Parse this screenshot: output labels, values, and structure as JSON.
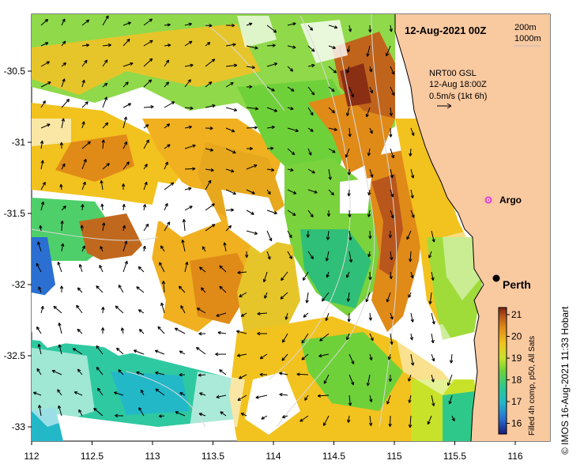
{
  "header": {
    "date_title": "12-Aug-2021 00Z",
    "contour_200": "200m",
    "contour_1000": "1000m"
  },
  "currents": {
    "source": "NRT00 GSL",
    "time": "12-Aug 18:00Z",
    "scale": "0.5m/s (1kt 6h)"
  },
  "places": {
    "argo": "Argo",
    "perth": "Perth"
  },
  "axes": {
    "lon_ticks": [
      "112",
      "112.5",
      "113",
      "113.5",
      "114",
      "114.5",
      "115",
      "115.5",
      "116"
    ],
    "lat_ticks": [
      "-30.5",
      "-31",
      "-31.5",
      "-32",
      "-32.5",
      "-33"
    ]
  },
  "colorbar": {
    "ticks": [
      "21",
      "20",
      "19",
      "18",
      "17",
      "16"
    ],
    "caption": "Filled 4h comp, p50, All Sats"
  },
  "credit": "© IMOS 16-Aug-2021 11:33 Hobart",
  "colors": {
    "land": "#f9c9a0",
    "argo_marker": "#e040e0",
    "sst_ramp": [
      "#1a1a7a",
      "#2a6fd1",
      "#22b8c8",
      "#2ec98a",
      "#6fd13a",
      "#c8e22a",
      "#f2c21e",
      "#e08a18",
      "#b8561c",
      "#7a2410"
    ]
  }
}
